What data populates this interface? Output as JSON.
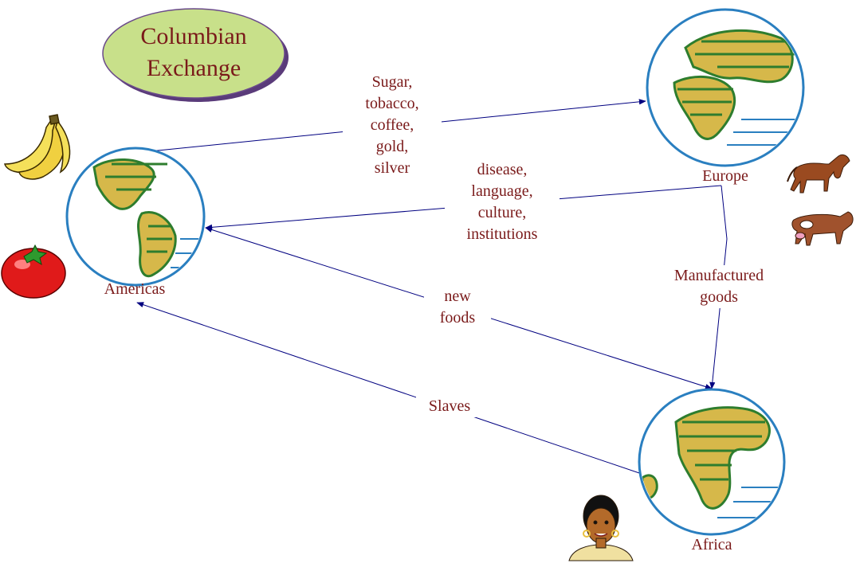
{
  "title": "Columbian\nExchange",
  "regions": {
    "americas": "Americas",
    "europe": "Europe",
    "africa": "Africa"
  },
  "flows": {
    "americas_to_europe": "Sugar,\ntobacco,\ncoffee,\ngold,\nsilver",
    "europe_to_americas": "disease,\nlanguage,\nculture,\ninstitutions",
    "americas_africa": "new\nfoods",
    "europe_to_africa": "Manufactured\ngoods",
    "africa_to_americas": "Slaves"
  },
  "colors": {
    "text": "#7a1a1a",
    "arrow": "#000080",
    "title_fill": "#c8e08a",
    "ocean": "#2a7fc0",
    "land": "#d6b84a",
    "land_shade": "#2e7d2e"
  },
  "icons": [
    "banana-icon",
    "tomato-icon",
    "horse-icon",
    "cow-icon",
    "woman-icon"
  ]
}
